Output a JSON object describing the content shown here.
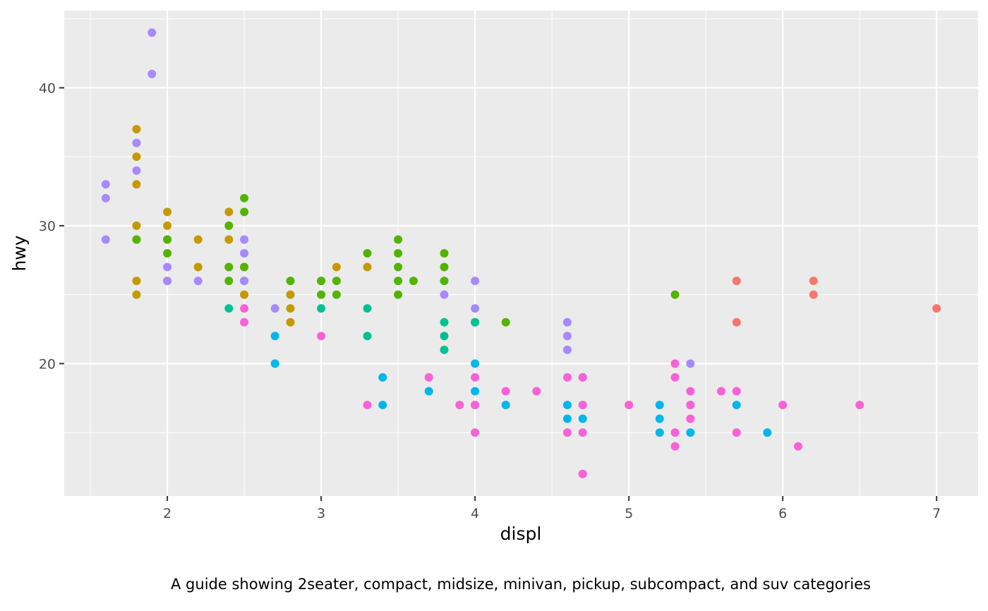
{
  "chart_data": {
    "type": "scatter",
    "xlabel": "displ",
    "ylabel": "hwy",
    "caption": "A guide showing 2seater, compact, midsize, minivan, pickup, subcompact, and suv categories",
    "xlim": [
      1.33,
      7.27
    ],
    "ylim": [
      10.4,
      45.6
    ],
    "x_ticks": [
      2,
      3,
      4,
      5,
      6,
      7
    ],
    "y_ticks": [
      20,
      30,
      40
    ],
    "grid": true,
    "legend": "none",
    "background": "#EBEBEB",
    "colors": {
      "2seater": "#F8766D",
      "compact": "#C49A00",
      "midsize": "#53B400",
      "minivan": "#00C094",
      "pickup": "#00B6EB",
      "subcompact": "#A58AFF",
      "suv": "#FB61D7"
    },
    "series": [
      {
        "category": "2seater",
        "points": [
          [
            5.7,
            26
          ],
          [
            5.7,
            23
          ],
          [
            6.2,
            26
          ],
          [
            6.2,
            25
          ],
          [
            7.0,
            24
          ]
        ]
      },
      {
        "category": "compact",
        "points": [
          [
            1.8,
            37
          ],
          [
            1.8,
            35
          ],
          [
            1.8,
            33
          ],
          [
            1.8,
            30
          ],
          [
            1.8,
            29
          ],
          [
            1.8,
            26
          ],
          [
            1.8,
            25
          ],
          [
            2.0,
            31
          ],
          [
            2.0,
            30
          ],
          [
            2.0,
            29
          ],
          [
            2.0,
            26
          ],
          [
            2.2,
            29
          ],
          [
            2.2,
            27
          ],
          [
            2.4,
            31
          ],
          [
            2.4,
            29
          ],
          [
            2.4,
            27
          ],
          [
            2.5,
            27
          ],
          [
            2.5,
            25
          ],
          [
            2.8,
            25
          ],
          [
            2.8,
            24
          ],
          [
            2.8,
            23
          ],
          [
            3.0,
            26
          ],
          [
            3.1,
            27
          ],
          [
            3.3,
            27
          ]
        ]
      },
      {
        "category": "midsize",
        "points": [
          [
            1.8,
            29
          ],
          [
            2.0,
            29
          ],
          [
            2.0,
            28
          ],
          [
            2.4,
            30
          ],
          [
            2.4,
            27
          ],
          [
            2.4,
            26
          ],
          [
            2.5,
            32
          ],
          [
            2.5,
            31
          ],
          [
            2.5,
            27
          ],
          [
            2.5,
            26
          ],
          [
            2.8,
            26
          ],
          [
            3.0,
            26
          ],
          [
            3.0,
            25
          ],
          [
            3.1,
            26
          ],
          [
            3.1,
            25
          ],
          [
            3.3,
            28
          ],
          [
            3.5,
            29
          ],
          [
            3.5,
            28
          ],
          [
            3.5,
            27
          ],
          [
            3.5,
            26
          ],
          [
            3.5,
            25
          ],
          [
            3.6,
            26
          ],
          [
            3.8,
            28
          ],
          [
            3.8,
            27
          ],
          [
            3.8,
            26
          ],
          [
            4.0,
            23
          ],
          [
            4.2,
            23
          ],
          [
            5.3,
            25
          ]
        ]
      },
      {
        "category": "minivan",
        "points": [
          [
            2.4,
            24
          ],
          [
            3.0,
            24
          ],
          [
            3.3,
            24
          ],
          [
            3.3,
            22
          ],
          [
            3.8,
            23
          ],
          [
            3.8,
            22
          ],
          [
            3.8,
            21
          ],
          [
            4.0,
            23
          ]
        ]
      },
      {
        "category": "pickup",
        "points": [
          [
            2.7,
            22
          ],
          [
            2.7,
            20
          ],
          [
            3.4,
            19
          ],
          [
            3.4,
            17
          ],
          [
            3.7,
            18
          ],
          [
            4.0,
            20
          ],
          [
            4.0,
            18
          ],
          [
            4.0,
            17
          ],
          [
            4.2,
            17
          ],
          [
            4.6,
            17
          ],
          [
            4.6,
            16
          ],
          [
            4.7,
            19
          ],
          [
            4.7,
            17
          ],
          [
            4.7,
            16
          ],
          [
            4.7,
            12
          ],
          [
            5.2,
            17
          ],
          [
            5.2,
            16
          ],
          [
            5.2,
            15
          ],
          [
            5.4,
            17
          ],
          [
            5.4,
            15
          ],
          [
            5.7,
            17
          ],
          [
            5.9,
            15
          ]
        ]
      },
      {
        "category": "subcompact",
        "points": [
          [
            1.6,
            33
          ],
          [
            1.6,
            32
          ],
          [
            1.6,
            29
          ],
          [
            1.8,
            36
          ],
          [
            1.8,
            34
          ],
          [
            1.9,
            44
          ],
          [
            1.9,
            41
          ],
          [
            2.0,
            27
          ],
          [
            2.0,
            26
          ],
          [
            2.2,
            26
          ],
          [
            2.5,
            29
          ],
          [
            2.5,
            28
          ],
          [
            2.5,
            26
          ],
          [
            2.7,
            24
          ],
          [
            3.8,
            25
          ],
          [
            4.0,
            26
          ],
          [
            4.0,
            24
          ],
          [
            4.6,
            23
          ],
          [
            4.6,
            22
          ],
          [
            4.6,
            21
          ],
          [
            5.4,
            20
          ]
        ]
      },
      {
        "category": "suv",
        "points": [
          [
            2.5,
            24
          ],
          [
            2.5,
            23
          ],
          [
            3.0,
            22
          ],
          [
            3.3,
            17
          ],
          [
            3.7,
            19
          ],
          [
            3.9,
            17
          ],
          [
            4.0,
            19
          ],
          [
            4.0,
            17
          ],
          [
            4.0,
            15
          ],
          [
            4.2,
            18
          ],
          [
            4.4,
            18
          ],
          [
            4.6,
            19
          ],
          [
            4.6,
            15
          ],
          [
            4.7,
            19
          ],
          [
            4.7,
            17
          ],
          [
            4.7,
            15
          ],
          [
            4.7,
            12
          ],
          [
            5.0,
            17
          ],
          [
            5.3,
            20
          ],
          [
            5.3,
            19
          ],
          [
            5.3,
            15
          ],
          [
            5.3,
            14
          ],
          [
            5.4,
            18
          ],
          [
            5.4,
            17
          ],
          [
            5.4,
            16
          ],
          [
            5.6,
            18
          ],
          [
            5.7,
            18
          ],
          [
            5.7,
            15
          ],
          [
            6.0,
            17
          ],
          [
            6.1,
            14
          ],
          [
            6.5,
            17
          ]
        ]
      }
    ]
  }
}
